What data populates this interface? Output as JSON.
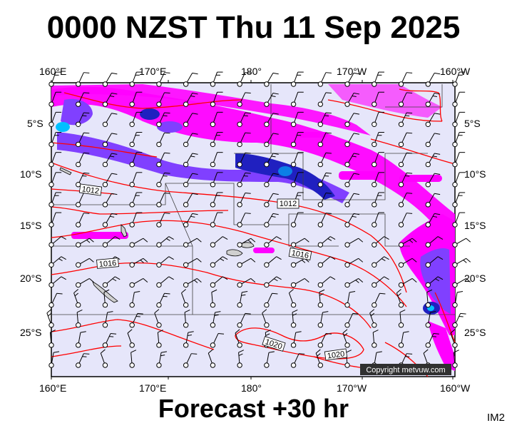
{
  "title": "0000 NZST Thu 11 Sep 2025",
  "subtitle": "Forecast +30 hr",
  "model_code": "IM2",
  "copyright": "Copyright metvuw.com",
  "lon_labels": [
    "160°E",
    "170°E",
    "180°",
    "170°W",
    "160°W"
  ],
  "lat_labels_left": [
    "5°S",
    "10°S",
    "15°S",
    "20°S",
    "25°S"
  ],
  "lat_labels_right": [
    "5°S",
    "10°S",
    "15°S",
    "20°S",
    "25°S"
  ],
  "isobar_labels": [
    "1012",
    "1012",
    "1016",
    "1016",
    "1020",
    "1020"
  ],
  "colors": {
    "background": "#e6e6fa",
    "isobar": "#ff0000",
    "rain_light": "#ff00ff",
    "rain_mid": "#8040ff",
    "rain_heavy": "#2020c0",
    "rain_extreme": "#00c0ff"
  },
  "legend_semantics": {
    "isobars": "mean sea level pressure (hPa)",
    "shading": "precipitation",
    "wind_barbs": "wind"
  }
}
